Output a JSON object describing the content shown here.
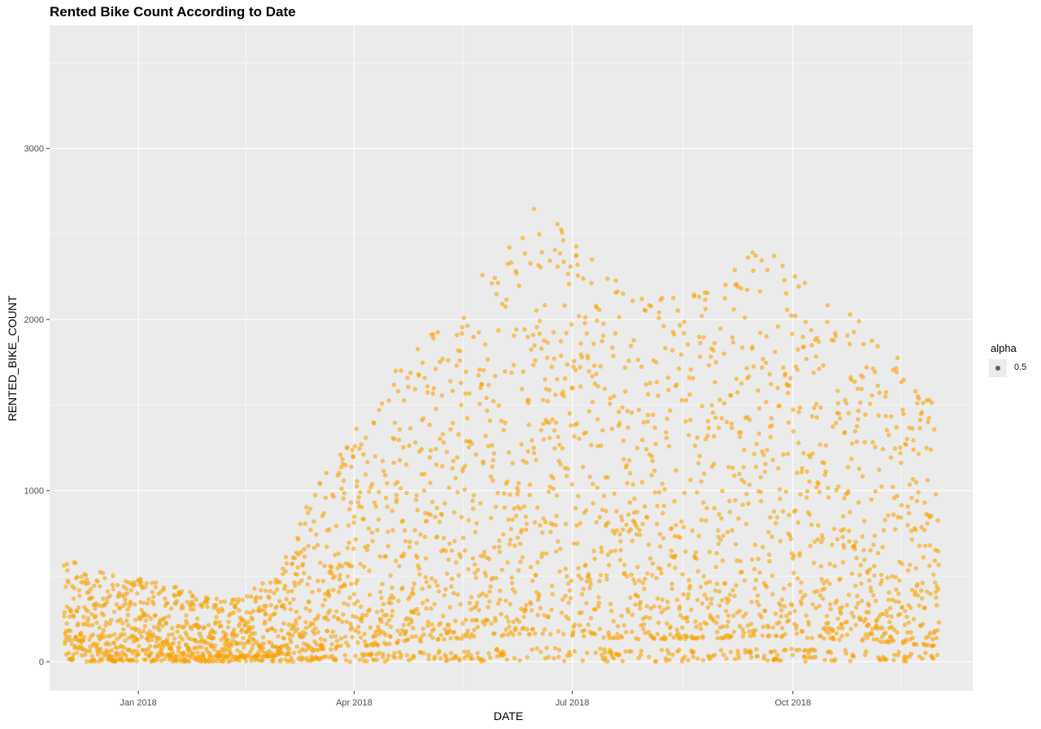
{
  "chart_data": {
    "type": "scatter",
    "title": "Rented Bike Count According to Date",
    "xlabel": "DATE",
    "ylabel": "RENTED_BIKE_COUNT",
    "x_ticks": [
      "Jan 2018",
      "Apr 2018",
      "Jul 2018",
      "Oct 2018"
    ],
    "y_ticks": [
      0,
      1000,
      2000,
      3000
    ],
    "xlim": [
      "2017-11-25",
      "2018-12-15"
    ],
    "ylim": [
      -170,
      3720
    ],
    "color": "#FFA500",
    "point_alpha": 0.6,
    "grid": true,
    "legend": {
      "title": "alpha",
      "entries": [
        "0.5"
      ],
      "position": "right"
    },
    "series": [
      {
        "x": [
          "2017-12-01",
          "2017-12-10",
          "2017-12-20",
          "2018-01-01",
          "2018-01-15",
          "2018-02-01",
          "2018-02-15",
          "2018-03-01",
          "2018-03-15",
          "2018-04-01",
          "2018-04-15",
          "2018-05-01",
          "2018-05-15",
          "2018-06-01",
          "2018-06-15",
          "2018-07-01",
          "2018-07-15",
          "2018-08-01",
          "2018-08-15",
          "2018-09-01",
          "2018-09-15",
          "2018-10-01",
          "2018-10-15",
          "2018-11-01",
          "2018-11-15",
          "2018-11-30"
        ],
        "y": [
          250,
          230,
          210,
          200,
          180,
          150,
          160,
          230,
          420,
          560,
          680,
          780,
          870,
          980,
          1080,
          1020,
          930,
          860,
          880,
          900,
          1000,
          950,
          880,
          800,
          720,
          600
        ]
      }
    ]
  }
}
